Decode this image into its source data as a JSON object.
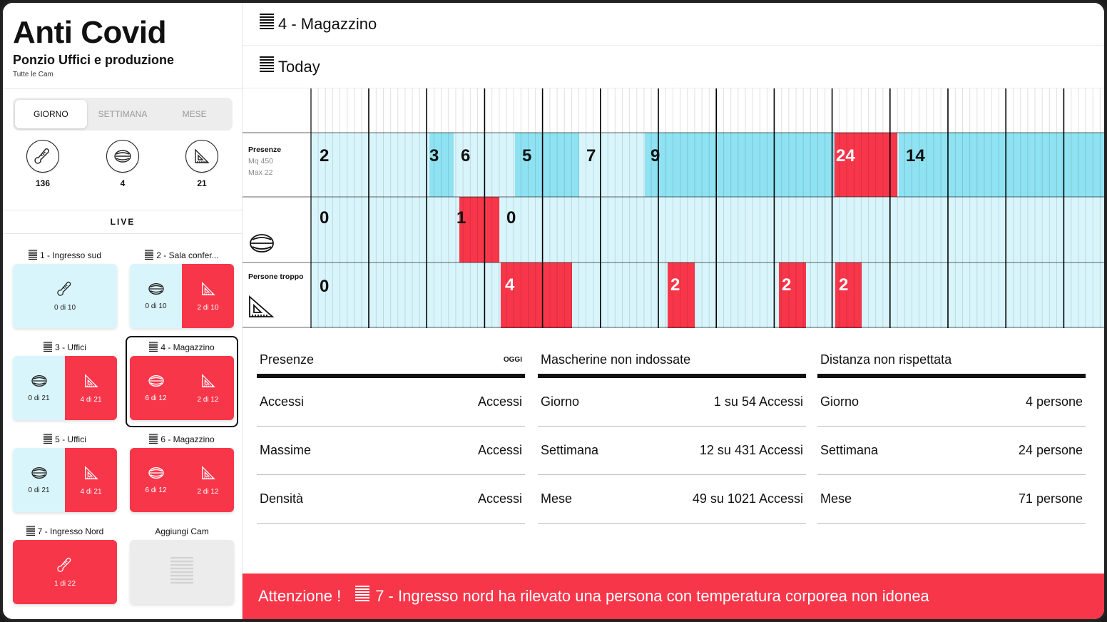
{
  "app": {
    "brand": "Anti Covid",
    "site": "Ponzio Uffici e produzione",
    "subsite": "Tutte le Cam"
  },
  "period_tabs": [
    {
      "label": "GIORNO",
      "active": true
    },
    {
      "label": "SETTIMANA",
      "active": false
    },
    {
      "label": "MESE",
      "active": false
    }
  ],
  "stats": [
    {
      "icon": "thermometer-icon",
      "value": "136"
    },
    {
      "icon": "mask-icon",
      "value": "4"
    },
    {
      "icon": "set-square-icon",
      "value": "21"
    }
  ],
  "live_label": "LIVE",
  "cams": [
    {
      "title": "1 - Ingresso sud",
      "halves": [
        {
          "kind": "blue",
          "icon": "thermometer-icon",
          "text": "0 di 10"
        }
      ]
    },
    {
      "title": "2 - Sala confer...",
      "halves": [
        {
          "kind": "blue",
          "icon": "mask-icon",
          "text": "0 di 10"
        },
        {
          "kind": "red",
          "icon": "set-square-icon",
          "text": "2 di 10"
        }
      ]
    },
    {
      "title": "3 - Uffici",
      "halves": [
        {
          "kind": "blue",
          "icon": "mask-icon",
          "text": "0 di 21"
        },
        {
          "kind": "red",
          "icon": "set-square-icon",
          "text": "4 di 21"
        }
      ]
    },
    {
      "title": "4 - Magazzino",
      "selected": true,
      "halves": [
        {
          "kind": "red",
          "icon": "mask-icon",
          "text": "6 di 12"
        },
        {
          "kind": "red",
          "icon": "set-square-icon",
          "text": "2 di 12"
        }
      ]
    },
    {
      "title": "5 - Uffici",
      "halves": [
        {
          "kind": "blue",
          "icon": "mask-icon",
          "text": "0 di 21"
        },
        {
          "kind": "red",
          "icon": "set-square-icon",
          "text": "4 di 21"
        }
      ]
    },
    {
      "title": "6 - Magazzino",
      "halves": [
        {
          "kind": "red",
          "icon": "mask-icon",
          "text": "6 di 12"
        },
        {
          "kind": "red",
          "icon": "set-square-icon",
          "text": "2 di 12"
        }
      ]
    },
    {
      "title": "7 - Ingresso Nord",
      "halves": [
        {
          "kind": "red",
          "icon": "thermometer-icon",
          "text": "1 di 22"
        }
      ]
    },
    {
      "title": "Aggiungi Cam",
      "add": true,
      "halves": [
        {
          "kind": "grey",
          "icon": "lines-icon",
          "text": ""
        }
      ]
    }
  ],
  "header": {
    "camera": "4 - Magazzino",
    "period": "Today"
  },
  "timeline": {
    "rows": [
      {
        "label": "Presenze",
        "sub1": "Mq 450",
        "sub2": "Max 22",
        "values": [
          "2",
          "3",
          "6",
          "5",
          "7",
          "9",
          "24",
          "14"
        ]
      },
      {
        "label": "",
        "icon": "mask-icon",
        "values": [
          "0",
          "1",
          "0"
        ]
      },
      {
        "label": "Persone troppo",
        "icon": "set-square-icon",
        "values": [
          "0",
          "4",
          "2",
          "2",
          "2"
        ]
      }
    ]
  },
  "summary": [
    {
      "title": "Presenze",
      "tag": "OGGI",
      "rows": [
        {
          "k": "Accessi",
          "v": "Accessi"
        },
        {
          "k": "Massime",
          "v": "Accessi"
        },
        {
          "k": "Densità",
          "v": "Accessi"
        }
      ]
    },
    {
      "title": "Mascherine non indossate",
      "tag": "",
      "rows": [
        {
          "k": "Giorno",
          "v": "1 su 54 Accessi"
        },
        {
          "k": "Settimana",
          "v": "12 su 431 Accessi"
        },
        {
          "k": "Mese",
          "v": "49 su 1021 Accessi"
        }
      ]
    },
    {
      "title": "Distanza non rispettata",
      "tag": "",
      "rows": [
        {
          "k": "Giorno",
          "v": "4 persone"
        },
        {
          "k": "Settimana",
          "v": "24 persone"
        },
        {
          "k": "Mese",
          "v": "71 persone"
        }
      ]
    }
  ],
  "alert": {
    "prefix": "Attenzione !",
    "message": "7 - Ingresso nord ha rilevato una persona con temperatura corporea non idonea"
  },
  "colors": {
    "red": "#f8364a",
    "light_blue": "#d9f5fc",
    "mid_blue": "#8fe2f2",
    "grey": "#ececec"
  }
}
